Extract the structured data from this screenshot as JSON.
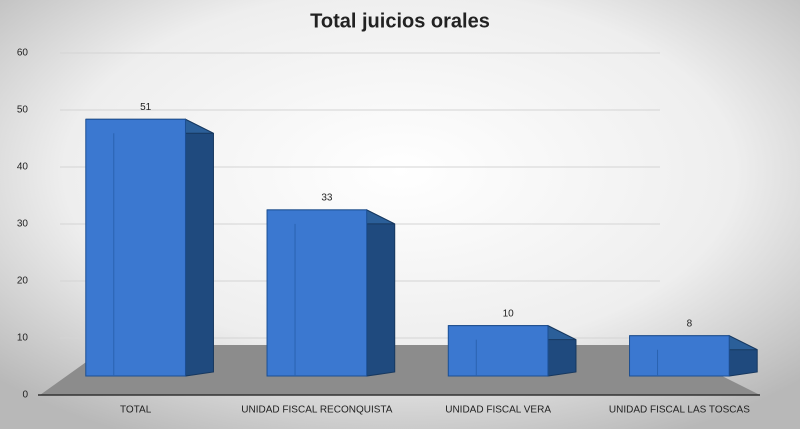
{
  "chart_data": {
    "type": "bar3d",
    "title": "Total juicios orales",
    "categories": [
      "TOTAL",
      "UNIDAD FISCAL RECONQUISTA",
      "UNIDAD FISCAL VERA",
      "UNIDAD FISCAL LAS TOSCAS"
    ],
    "values": [
      51,
      33,
      10,
      8
    ],
    "color": "#3b78d0",
    "ylim": [
      0,
      60
    ],
    "yticks": [
      0,
      10,
      20,
      30,
      40,
      50,
      60
    ],
    "grid": true
  }
}
